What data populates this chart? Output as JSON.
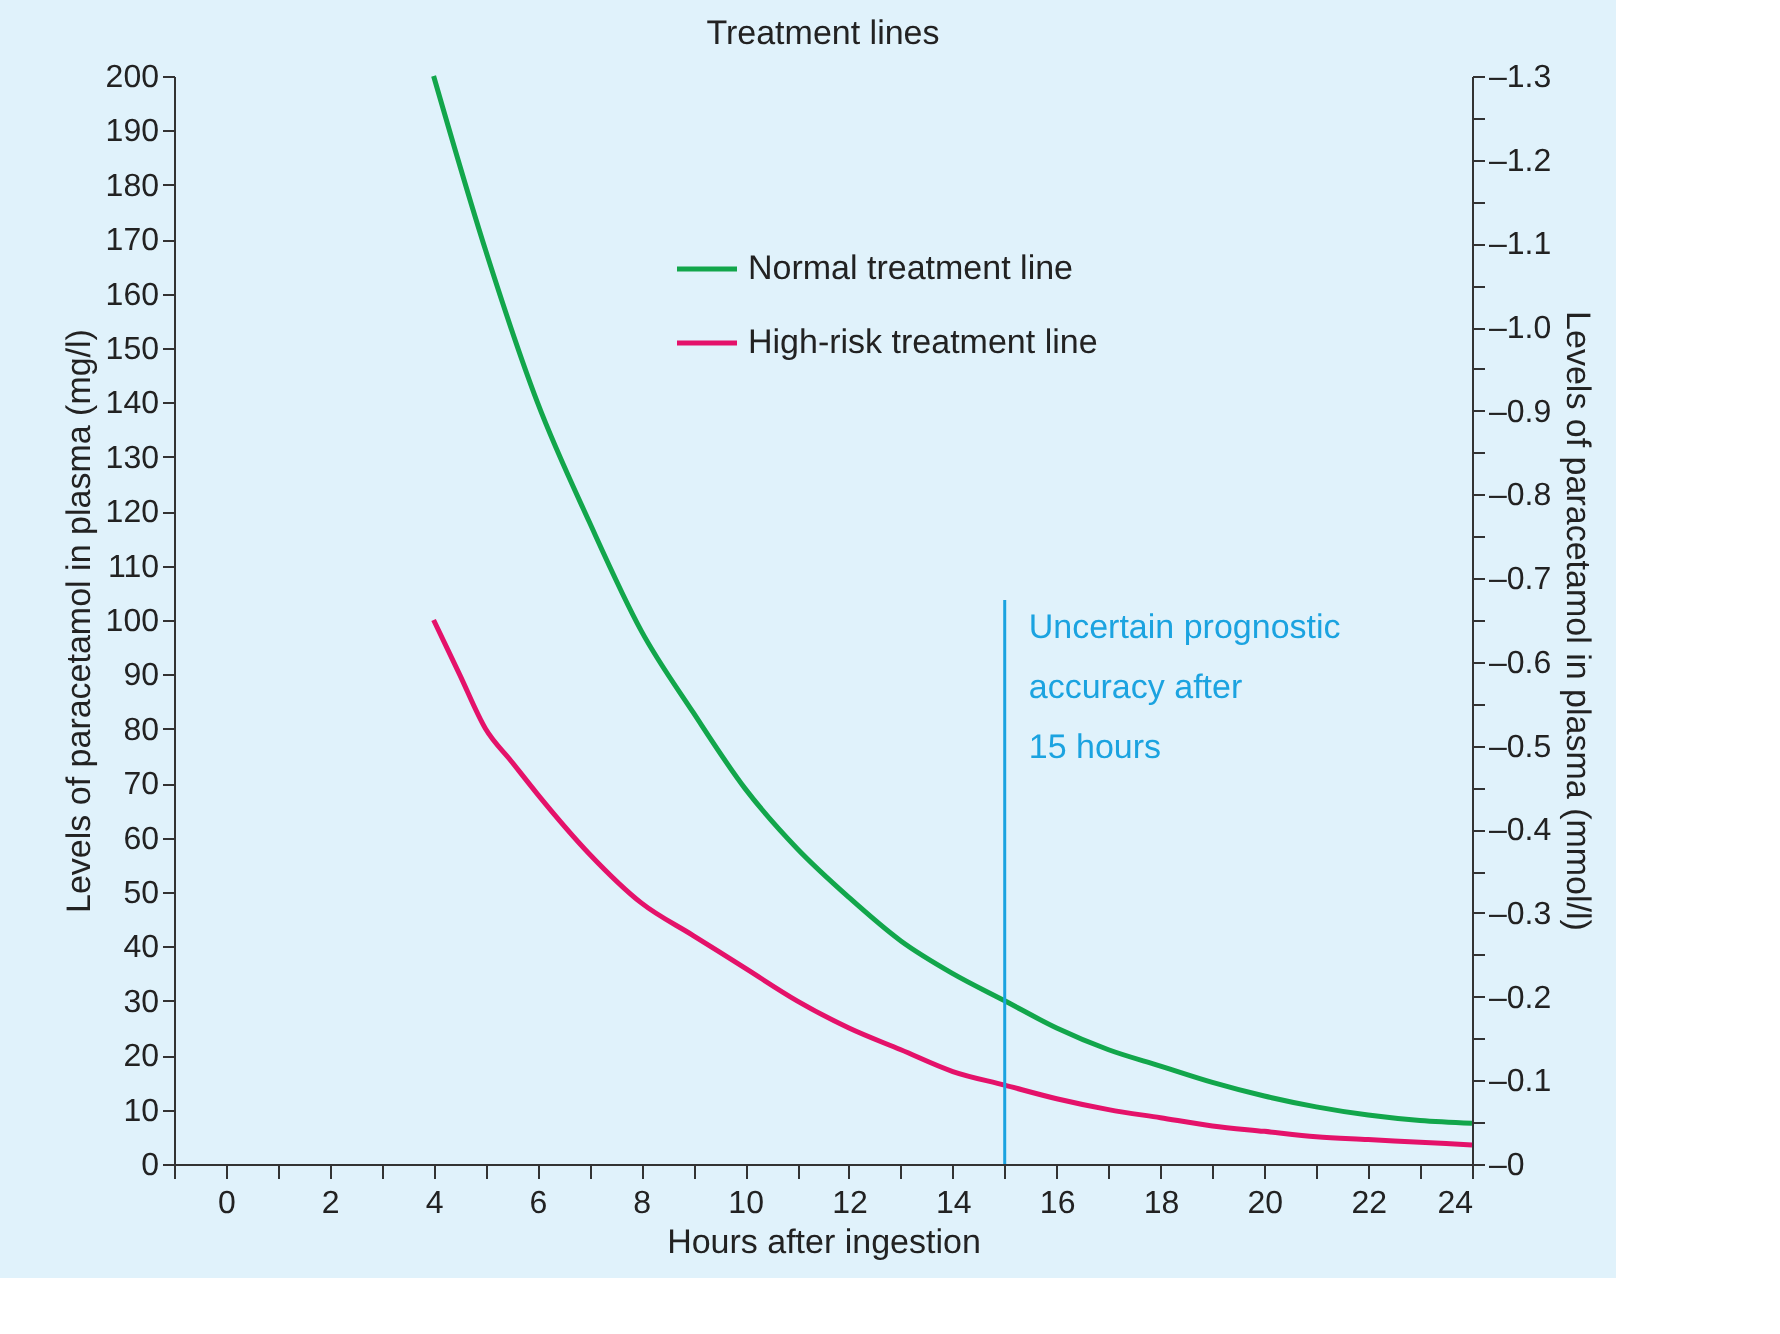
{
  "chart_data": {
    "type": "line",
    "title": "Treatment lines",
    "xlabel": "Hours after ingestion",
    "ylabel": "Levels of paracetamol in plasma (mg/l)",
    "y2label": "Levels of paracetamol in plasma (mmol/l)",
    "xlim": [
      -1,
      24
    ],
    "xticks": [
      {
        "value": -1,
        "label": null
      },
      0,
      {
        "value": 1,
        "label": null
      },
      2,
      {
        "value": 3,
        "label": null
      },
      4,
      {
        "value": 5,
        "label": null
      },
      6,
      {
        "value": 7,
        "label": null
      },
      8,
      {
        "value": 9,
        "label": null
      },
      10,
      {
        "value": 11,
        "label": null
      },
      12,
      {
        "value": 13,
        "label": null
      },
      14,
      {
        "value": 15,
        "label": null
      },
      16,
      {
        "value": 17,
        "label": null
      },
      18,
      {
        "value": 19,
        "label": null
      },
      20,
      {
        "value": 21,
        "label": null
      },
      22,
      {
        "value": 23,
        "label": null
      },
      24
    ],
    "ylim": [
      0,
      200
    ],
    "yticks": [
      0,
      10,
      20,
      30,
      40,
      50,
      60,
      70,
      80,
      90,
      100,
      110,
      120,
      130,
      140,
      150,
      160,
      170,
      180,
      190,
      200
    ],
    "y2lim": [
      0,
      -1.3
    ],
    "y2ticks": [
      {
        "value": 0,
        "label": "–0"
      },
      {
        "value": -0.05,
        "label": null
      },
      {
        "value": -0.1,
        "label": "–0.1"
      },
      {
        "value": -0.15,
        "label": null
      },
      {
        "value": -0.2,
        "label": "–0.2"
      },
      {
        "value": -0.25,
        "label": null
      },
      {
        "value": -0.3,
        "label": "–0.3"
      },
      {
        "value": -0.35,
        "label": null
      },
      {
        "value": -0.4,
        "label": "–0.4"
      },
      {
        "value": -0.45,
        "label": null
      },
      {
        "value": -0.5,
        "label": "–0.5"
      },
      {
        "value": -0.55,
        "label": null
      },
      {
        "value": -0.6,
        "label": "–0.6"
      },
      {
        "value": -0.65,
        "label": null
      },
      {
        "value": -0.7,
        "label": "–0.7"
      },
      {
        "value": -0.75,
        "label": null
      },
      {
        "value": -0.8,
        "label": "–0.8"
      },
      {
        "value": -0.85,
        "label": null
      },
      {
        "value": -0.9,
        "label": "–0.9"
      },
      {
        "value": -0.95,
        "label": null
      },
      {
        "value": -1.0,
        "label": "–1.0"
      },
      {
        "value": -1.05,
        "label": null
      },
      {
        "value": -1.1,
        "label": "–1.1"
      },
      {
        "value": -1.15,
        "label": null
      },
      {
        "value": -1.2,
        "label": "–1.2"
      },
      {
        "value": -1.25,
        "label": null
      },
      {
        "value": -1.3,
        "label": "–1.3"
      }
    ],
    "series": [
      {
        "name": "Normal treatment line",
        "color": "#12a64b",
        "x": [
          4,
          5,
          6,
          7,
          8,
          9,
          10,
          11,
          12,
          13,
          14,
          15,
          16,
          17,
          18,
          19,
          20,
          21,
          22,
          23,
          24
        ],
        "values": [
          200,
          168,
          140,
          118,
          98,
          83,
          69,
          58,
          49,
          41,
          35,
          30,
          25,
          21,
          18,
          15,
          12.5,
          10.5,
          9,
          8,
          7.5
        ]
      },
      {
        "name": "High-risk treatment line",
        "color": "#e4126a",
        "x": [
          4,
          4.5,
          5,
          5.5,
          6,
          7,
          8,
          9,
          10,
          11,
          12,
          13,
          14,
          15,
          16,
          17,
          18,
          19,
          20,
          21,
          22,
          23,
          24
        ],
        "values": [
          100,
          90,
          80,
          74,
          68,
          57,
          48,
          42,
          36,
          30,
          25,
          21,
          17,
          14.5,
          12,
          10,
          8.5,
          7,
          6,
          5,
          4.5,
          4,
          3.5
        ]
      }
    ],
    "ref_lines": [
      {
        "axis": "x",
        "value": 15,
        "label": "Uncertain prognostic\naccuracy after\n15 hours",
        "color": "#1ba3e0"
      }
    ],
    "legend": "top",
    "grid": false,
    "marker": "none",
    "line_style": "solid"
  }
}
